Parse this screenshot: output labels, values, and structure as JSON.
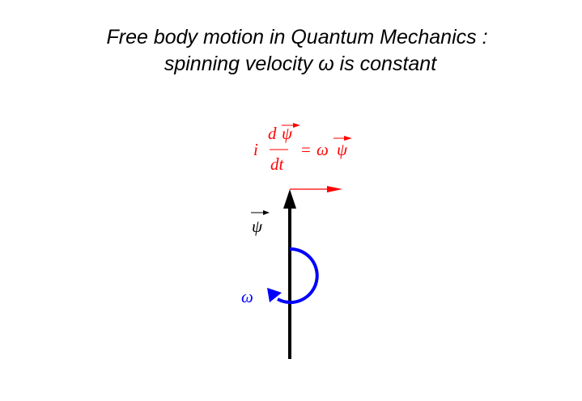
{
  "title": {
    "line1": "Free body motion in Quantum Mechanics :",
    "line2": "spinning velocity ω is constant"
  },
  "equation": {
    "i": "i",
    "numerator_d": "d",
    "psi": "ψ",
    "denominator": "dt",
    "equals": "=",
    "omega": "ω",
    "psi_rhs": "ψ",
    "color": "#ff0000"
  },
  "diagram": {
    "psi_label": "ψ",
    "omega_label": "ω",
    "psi_color": "#000000",
    "derivative_color": "#ff0000",
    "rotation_color": "#0000ff"
  }
}
